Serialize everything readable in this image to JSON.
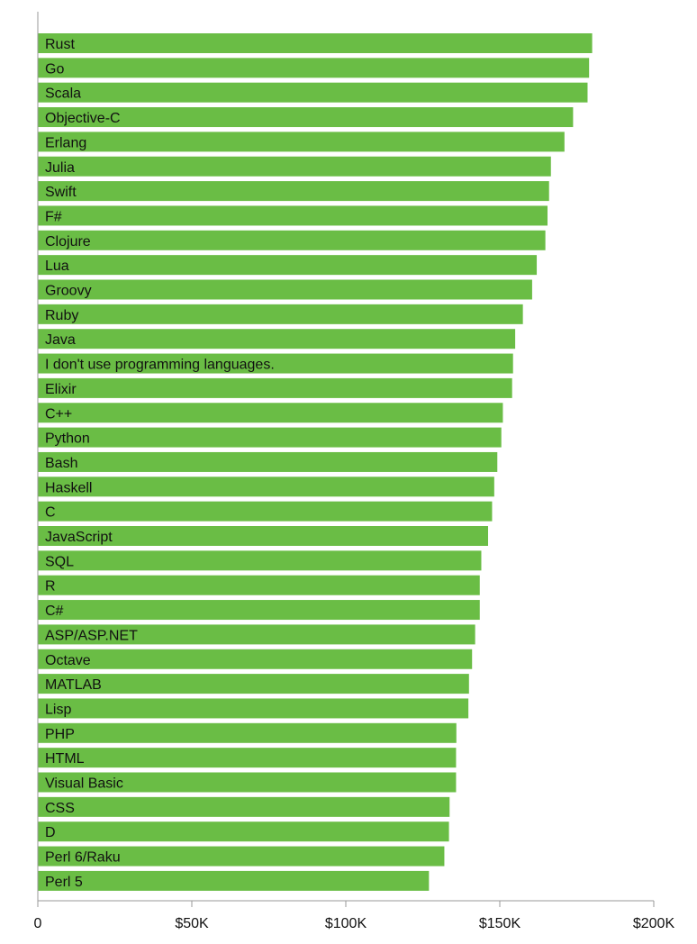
{
  "chart_data": {
    "type": "bar",
    "orientation": "horizontal",
    "title": "",
    "xlabel": "",
    "ylabel": "",
    "xlim": [
      0,
      200000
    ],
    "grid": false,
    "legend": "none",
    "bar_color": "#6abd45",
    "x_ticks": [
      0,
      50000,
      100000,
      150000,
      200000
    ],
    "x_tick_labels": [
      "0",
      "$50K",
      "$100K",
      "$150K",
      "$200K"
    ],
    "categories": [
      "Rust",
      "Go",
      "Scala",
      "Objective-C",
      "Erlang",
      "Julia",
      "Swift",
      "F#",
      "Clojure",
      "Lua",
      "Groovy",
      "Ruby",
      "Java",
      "I don't use programming languages.",
      "Elixir",
      "C++",
      "Python",
      "Bash",
      "Haskell",
      "C",
      "JavaScript",
      "SQL",
      "R",
      "C#",
      "ASP/ASP.NET",
      "Octave",
      "MATLAB",
      "Lisp",
      "PHP",
      "HTML",
      "Visual Basic",
      "CSS",
      "D",
      "Perl 6/Raku",
      "Perl 5"
    ],
    "values": [
      180000,
      179000,
      178500,
      173800,
      171000,
      166600,
      166000,
      165500,
      164800,
      162000,
      160500,
      157500,
      155000,
      154300,
      154000,
      151000,
      150500,
      149200,
      148200,
      147500,
      146200,
      144000,
      143500,
      143500,
      142000,
      141000,
      140000,
      139800,
      135900,
      135800,
      135800,
      133700,
      133500,
      132000,
      127000
    ]
  }
}
